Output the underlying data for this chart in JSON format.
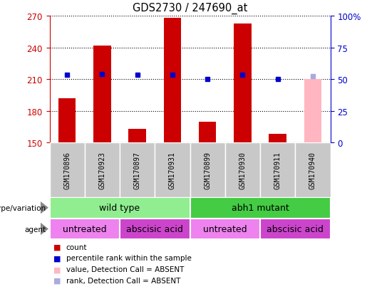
{
  "title": "GDS2730 / 247690_at",
  "samples": [
    "GSM170896",
    "GSM170923",
    "GSM170897",
    "GSM170931",
    "GSM170899",
    "GSM170930",
    "GSM170911",
    "GSM170940"
  ],
  "counts": [
    192,
    242,
    163,
    268,
    170,
    263,
    158,
    null
  ],
  "percentile_ranks": [
    214,
    215,
    214,
    214,
    210,
    214,
    210,
    null
  ],
  "absent_value": [
    null,
    null,
    null,
    null,
    null,
    null,
    null,
    210
  ],
  "absent_rank": [
    null,
    null,
    null,
    null,
    null,
    null,
    null,
    213
  ],
  "ylim_left": [
    150,
    270
  ],
  "ylim_right": [
    0,
    100
  ],
  "yticks_left": [
    150,
    180,
    210,
    240,
    270
  ],
  "yticks_right": [
    0,
    25,
    50,
    75,
    100
  ],
  "bar_bottom": 150,
  "count_color": "#CC0000",
  "absent_value_color": "#FFB6C1",
  "rank_color": "#0000CC",
  "absent_rank_color": "#AAAADD",
  "grid_color": "#000000",
  "bg_color": "#FFFFFF",
  "plot_bg": "#FFFFFF",
  "left_axis_color": "#CC0000",
  "right_axis_color": "#0000CC",
  "sample_label_bg": "#C8C8C8",
  "wild_type_color": "#90EE90",
  "abh1_color": "#44CC44",
  "untreated_color": "#EE82EE",
  "abscisic_color": "#CC44CC",
  "legend_items": [
    {
      "label": "count",
      "color": "#CC0000"
    },
    {
      "label": "percentile rank within the sample",
      "color": "#0000CC"
    },
    {
      "label": "value, Detection Call = ABSENT",
      "color": "#FFB6C1"
    },
    {
      "label": "rank, Detection Call = ABSENT",
      "color": "#AAAADD"
    }
  ]
}
